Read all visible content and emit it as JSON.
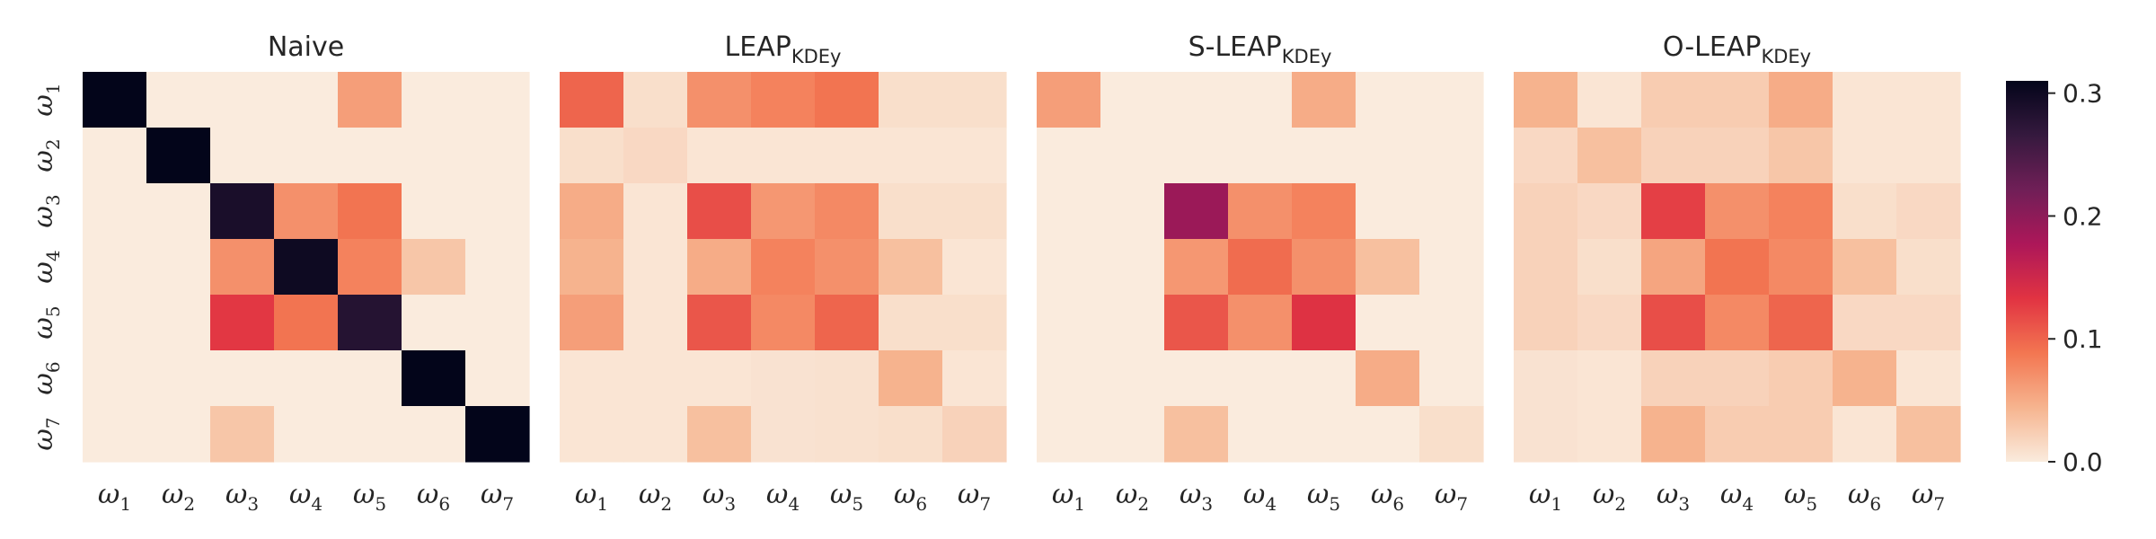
{
  "chart_data": {
    "type": "heatmap",
    "row_labels": [
      {
        "base": "ω",
        "sub": "1"
      },
      {
        "base": "ω",
        "sub": "2"
      },
      {
        "base": "ω",
        "sub": "3"
      },
      {
        "base": "ω",
        "sub": "4"
      },
      {
        "base": "ω",
        "sub": "5"
      },
      {
        "base": "ω",
        "sub": "6"
      },
      {
        "base": "ω",
        "sub": "7"
      }
    ],
    "col_labels": [
      {
        "base": "ω",
        "sub": "1"
      },
      {
        "base": "ω",
        "sub": "2"
      },
      {
        "base": "ω",
        "sub": "3"
      },
      {
        "base": "ω",
        "sub": "4"
      },
      {
        "base": "ω",
        "sub": "5"
      },
      {
        "base": "ω",
        "sub": "6"
      },
      {
        "base": "ω",
        "sub": "7"
      }
    ],
    "colorbar": {
      "min": 0.0,
      "max": 0.31,
      "ticks": [
        0.0,
        0.1,
        0.2,
        0.3
      ],
      "tick_labels": [
        "0.0",
        "0.1",
        "0.2",
        "0.3"
      ],
      "colormap": "rocket_r",
      "stops": [
        "#faebdd",
        "#f6b48f",
        "#f37651",
        "#e13342",
        "#ad1759",
        "#701f57",
        "#35193e",
        "#03051a"
      ]
    },
    "panels": [
      {
        "title_main": "Naive",
        "title_sub": "",
        "values": [
          [
            0.31,
            0.0,
            0.0,
            0.0,
            0.06,
            0.0,
            0.0
          ],
          [
            0.0,
            0.31,
            0.0,
            0.0,
            0.0,
            0.0,
            0.0
          ],
          [
            0.0,
            0.0,
            0.29,
            0.07,
            0.09,
            0.0,
            0.0
          ],
          [
            0.0,
            0.0,
            0.07,
            0.3,
            0.08,
            0.03,
            0.0
          ],
          [
            0.0,
            0.0,
            0.13,
            0.09,
            0.28,
            0.0,
            0.0
          ],
          [
            0.0,
            0.0,
            0.0,
            0.0,
            0.0,
            0.31,
            0.0
          ],
          [
            0.0,
            0.0,
            0.03,
            0.0,
            0.0,
            0.0,
            0.31
          ]
        ]
      },
      {
        "title_main": "LEAP",
        "title_sub": "KDEy",
        "values": [
          [
            0.1,
            0.01,
            0.07,
            0.08,
            0.09,
            0.01,
            0.01
          ],
          [
            0.01,
            0.015,
            0.005,
            0.005,
            0.005,
            0.005,
            0.005
          ],
          [
            0.05,
            0.005,
            0.115,
            0.065,
            0.075,
            0.01,
            0.01
          ],
          [
            0.045,
            0.005,
            0.05,
            0.08,
            0.07,
            0.035,
            0.005
          ],
          [
            0.06,
            0.005,
            0.11,
            0.075,
            0.1,
            0.01,
            0.01
          ],
          [
            0.005,
            0.005,
            0.005,
            0.007,
            0.008,
            0.045,
            0.005
          ],
          [
            0.005,
            0.005,
            0.035,
            0.007,
            0.008,
            0.01,
            0.02
          ]
        ]
      },
      {
        "title_main": "S-LEAP",
        "title_sub": "KDEy",
        "values": [
          [
            0.06,
            0.0,
            0.0,
            0.0,
            0.05,
            0.0,
            0.0
          ],
          [
            0.0,
            0.0,
            0.0,
            0.0,
            0.0,
            0.0,
            0.0
          ],
          [
            0.0,
            0.0,
            0.19,
            0.07,
            0.08,
            0.0,
            0.0
          ],
          [
            0.0,
            0.0,
            0.065,
            0.095,
            0.07,
            0.035,
            0.0
          ],
          [
            0.0,
            0.0,
            0.11,
            0.07,
            0.135,
            0.0,
            0.0
          ],
          [
            0.0,
            0.0,
            0.0,
            0.0,
            0.0,
            0.05,
            0.0
          ],
          [
            0.0,
            0.0,
            0.035,
            0.0,
            0.0,
            0.0,
            0.01
          ]
        ]
      },
      {
        "title_main": "O-LEAP",
        "title_sub": "KDEy",
        "values": [
          [
            0.045,
            0.005,
            0.025,
            0.025,
            0.05,
            0.005,
            0.005
          ],
          [
            0.015,
            0.035,
            0.02,
            0.02,
            0.03,
            0.005,
            0.005
          ],
          [
            0.02,
            0.015,
            0.125,
            0.07,
            0.08,
            0.01,
            0.015
          ],
          [
            0.02,
            0.01,
            0.055,
            0.09,
            0.075,
            0.035,
            0.01
          ],
          [
            0.02,
            0.015,
            0.115,
            0.075,
            0.1,
            0.015,
            0.015
          ],
          [
            0.007,
            0.005,
            0.02,
            0.02,
            0.025,
            0.045,
            0.005
          ],
          [
            0.007,
            0.005,
            0.045,
            0.025,
            0.025,
            0.005,
            0.035
          ]
        ]
      }
    ]
  }
}
